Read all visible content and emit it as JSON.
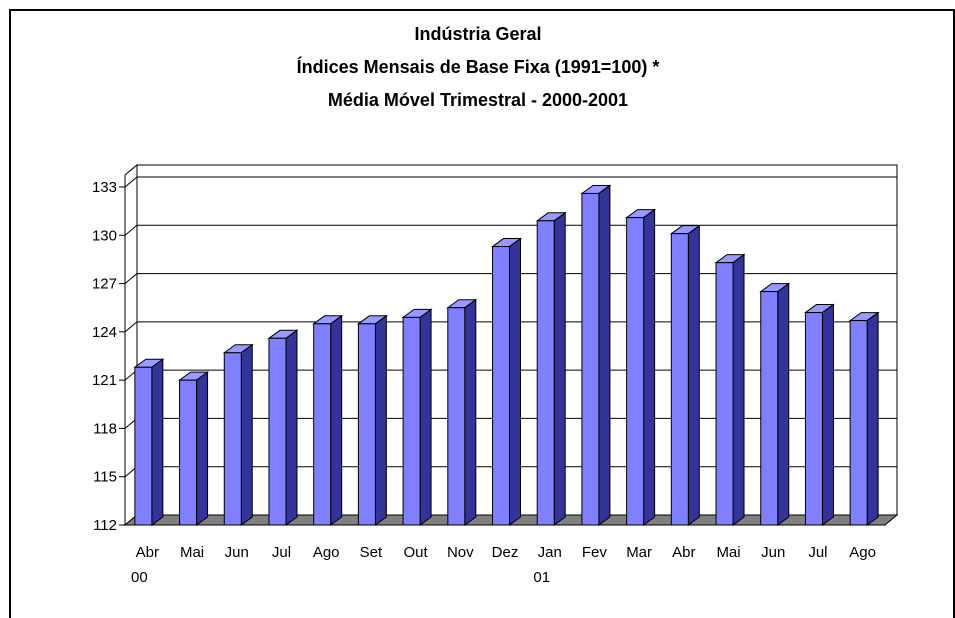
{
  "chart_data": {
    "type": "bar3d",
    "title": "Indústria Geral",
    "subtitle": "Índices Mensais de Base Fixa (1991=100) *",
    "subtitle2": "Média Móvel Trimestral - 2000-2001",
    "categories": [
      "Abr 00",
      "Mai",
      "Jun",
      "Jul",
      "Ago",
      "Set",
      "Out",
      "Nov",
      "Dez",
      "Jan 01",
      "Fev",
      "Mar",
      "Abr",
      "Mai",
      "Jun",
      "Jul",
      "Ago"
    ],
    "values": [
      121.8,
      121.0,
      122.7,
      123.6,
      124.5,
      124.5,
      124.9,
      125.5,
      129.3,
      130.9,
      132.6,
      131.1,
      130.1,
      128.3,
      126.5,
      125.2,
      124.7
    ],
    "color": "#8080ff",
    "ylim": [
      112,
      133
    ],
    "yticks": [
      112,
      115,
      118,
      121,
      124,
      127,
      130,
      133
    ],
    "grid": true
  }
}
